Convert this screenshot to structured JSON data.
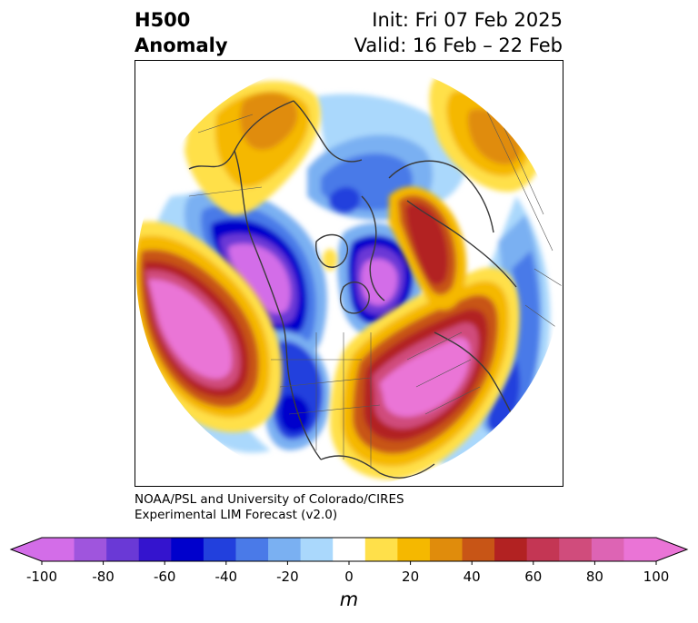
{
  "header": {
    "title_line1": "H500",
    "title_line2": "Anomaly",
    "init_text": "Init: Fri 07 Feb 2025",
    "valid_text": "Valid: 16 Feb – 22 Feb"
  },
  "credit": {
    "line1": "NOAA/PSL and University of Colorado/CIRES",
    "line2": "Experimental LIM Forecast (v2.0)"
  },
  "colorbar": {
    "unit_label": "m",
    "ticks": [
      "-100",
      "-80",
      "-60",
      "-40",
      "-20",
      "0",
      "20",
      "40",
      "60",
      "80",
      "100"
    ],
    "bin_colors": [
      "#d36de8",
      "#9f55dd",
      "#6a39d6",
      "#3414ce",
      "#0000cc",
      "#2240dd",
      "#4a7ae8",
      "#7ab0f2",
      "#aad8fc",
      "#ffffff",
      "#ffe04a",
      "#f5b800",
      "#e08c0c",
      "#c85516",
      "#b22222",
      "#c43654",
      "#d04c7c",
      "#dd64b4",
      "#ea74d6"
    ],
    "min_color": "#d36de8",
    "max_color": "#ea74d6"
  },
  "map": {
    "projection": "north-polar-stereographic",
    "field": "500 hPa geopotential height anomaly"
  }
}
